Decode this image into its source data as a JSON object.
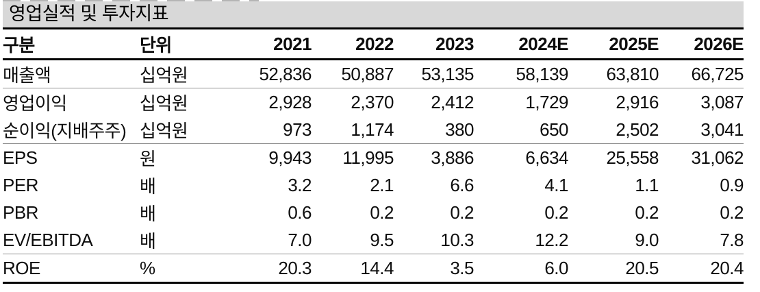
{
  "title": "영업실적 및 투자지표",
  "table": {
    "columns": [
      "구분",
      "단위",
      "2021",
      "2022",
      "2023",
      "2024E",
      "2025E",
      "2026E"
    ],
    "rows": [
      {
        "label": "매출액",
        "unit": "십억원",
        "values": [
          "52,836",
          "50,887",
          "53,135",
          "58,139",
          "63,810",
          "66,725"
        ]
      },
      {
        "label": "영업이익",
        "unit": "십억원",
        "values": [
          "2,928",
          "2,370",
          "2,412",
          "1,729",
          "2,916",
          "3,087"
        ]
      },
      {
        "label": "순이익(지배주주)",
        "unit": "십억원",
        "values": [
          "973",
          "1,174",
          "380",
          "650",
          "2,502",
          "3,041"
        ]
      },
      {
        "label": "EPS",
        "unit": "원",
        "values": [
          "9,943",
          "11,995",
          "3,886",
          "6,634",
          "25,558",
          "31,062"
        ]
      },
      {
        "label": "PER",
        "unit": "배",
        "values": [
          "3.2",
          "2.1",
          "6.6",
          "4.1",
          "1.1",
          "0.9"
        ]
      },
      {
        "label": "PBR",
        "unit": "배",
        "values": [
          "0.6",
          "0.2",
          "0.2",
          "0.2",
          "0.2",
          "0.2"
        ]
      },
      {
        "label": "EV/EBITDA",
        "unit": "배",
        "values": [
          "7.0",
          "9.5",
          "10.3",
          "12.2",
          "9.0",
          "7.8"
        ]
      },
      {
        "label": "ROE",
        "unit": "%",
        "values": [
          "20.3",
          "14.4",
          "3.5",
          "6.0",
          "20.5",
          "20.4"
        ]
      }
    ]
  },
  "colors": {
    "title_bar_bg": "#d8d8d8",
    "heavy_rule": "#000000",
    "light_rule": "#8f8f8f",
    "text": "#0d0d0d"
  }
}
